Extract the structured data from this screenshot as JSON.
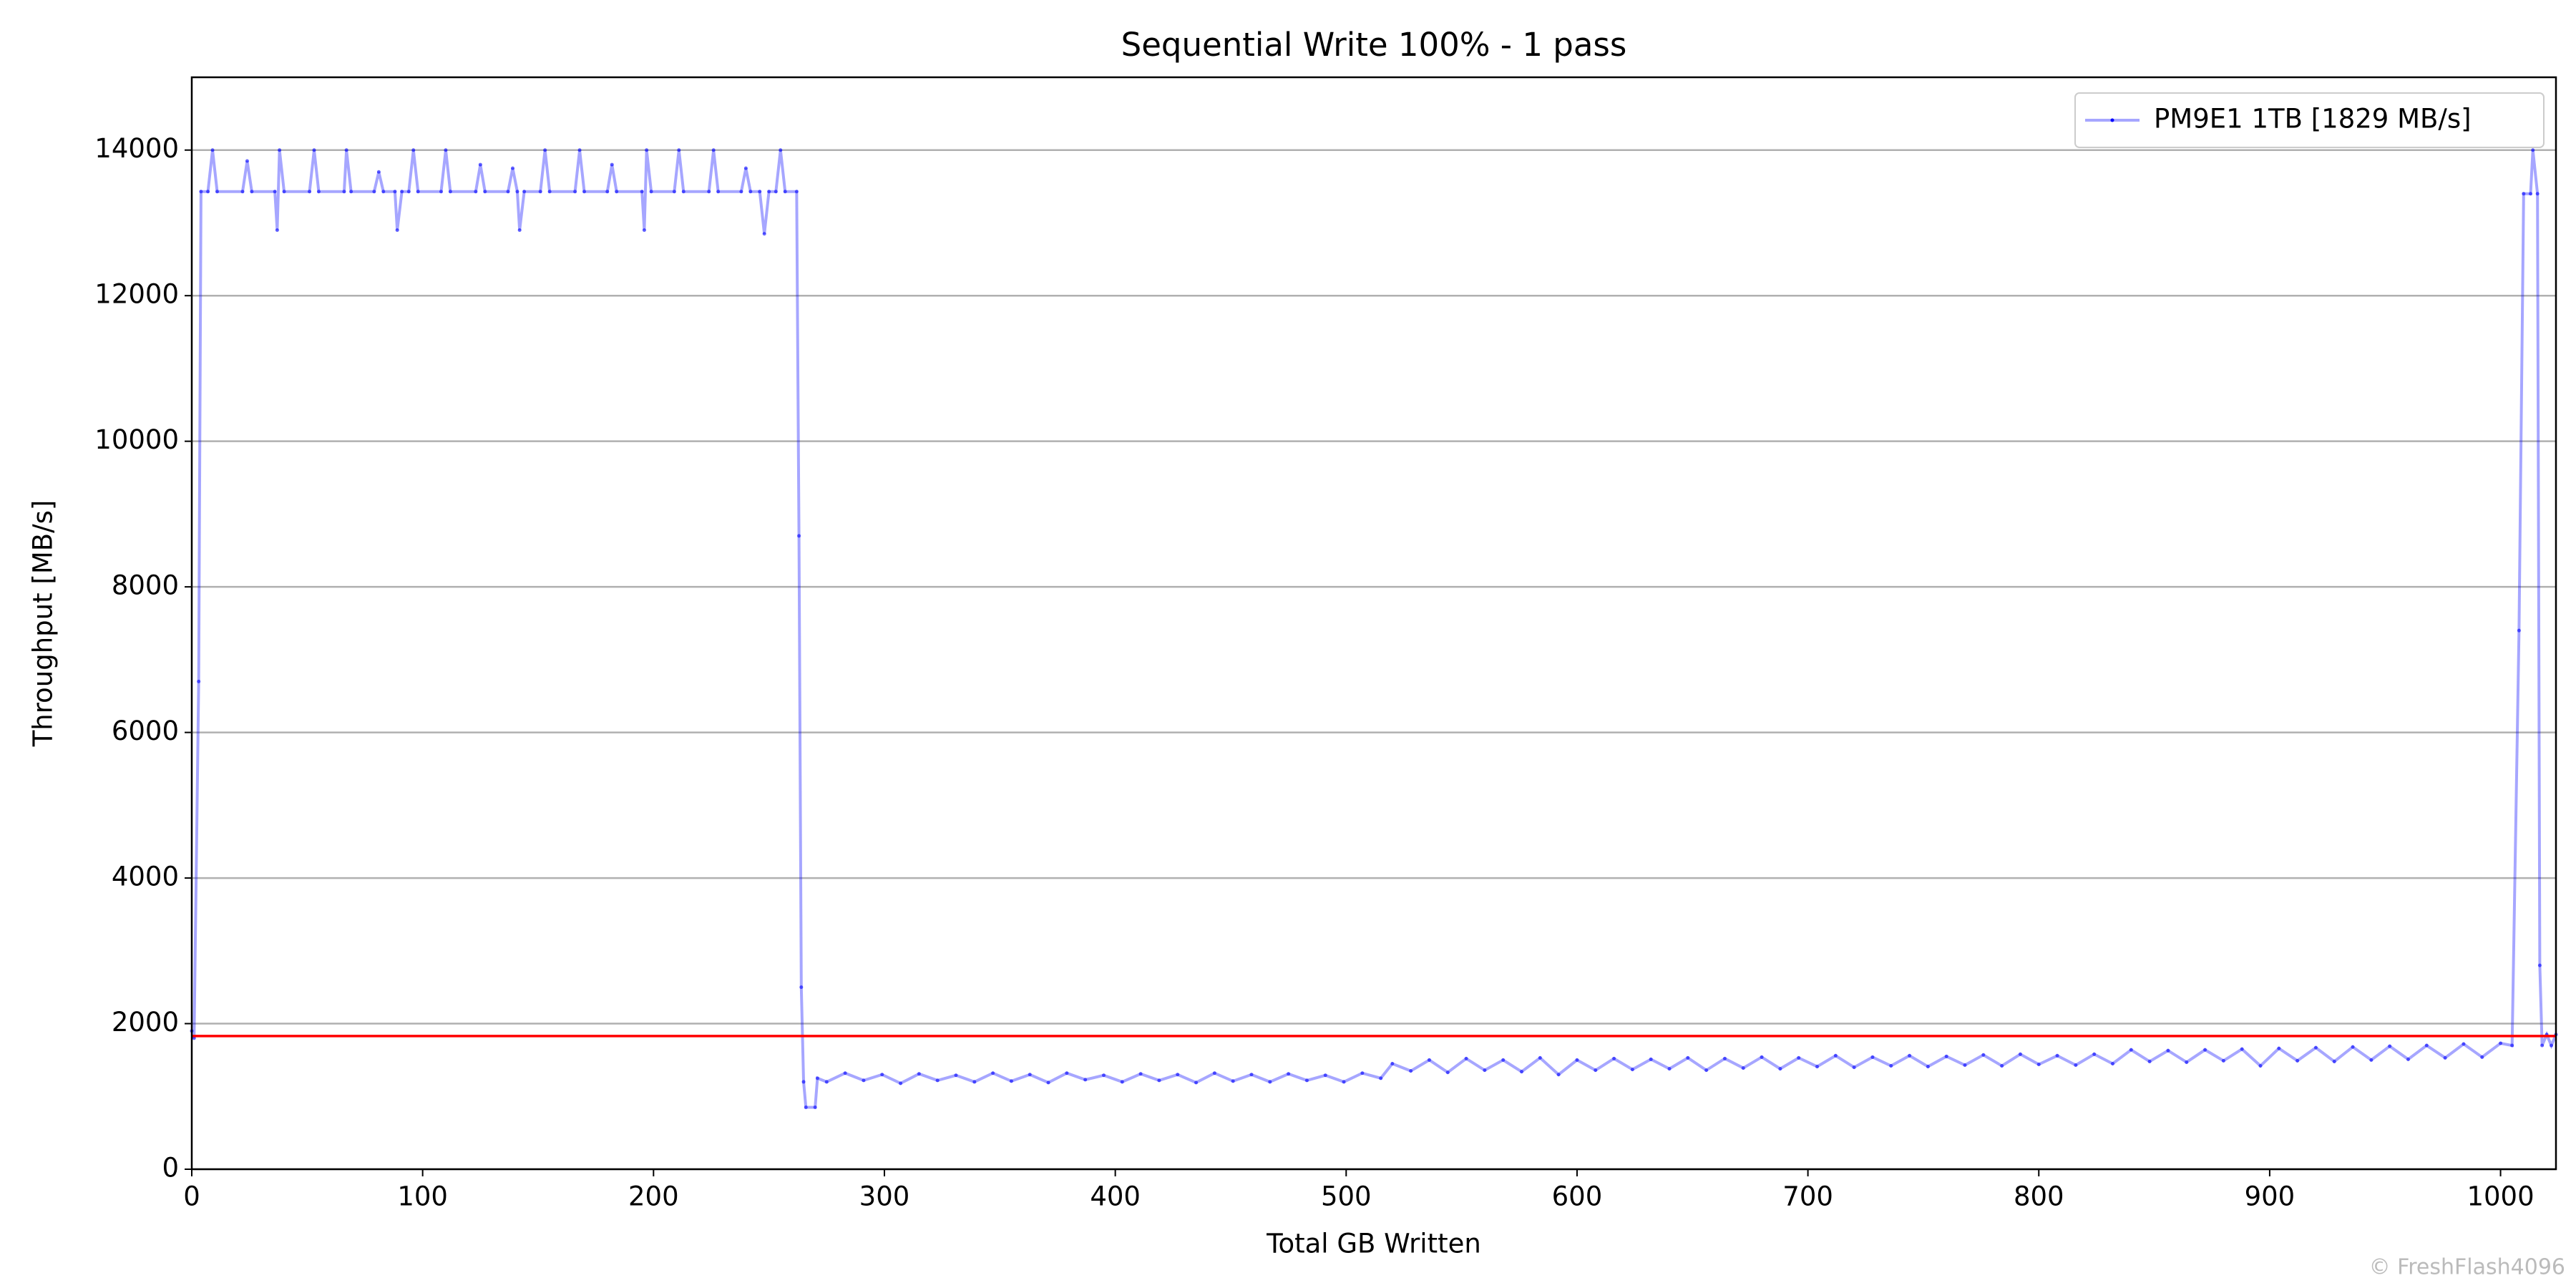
{
  "chart_data": {
    "type": "line",
    "title": "Sequential Write 100% - 1 pass",
    "xlabel": "Total GB Written",
    "ylabel": "Throughput [MB/s]",
    "watermark": "© FreshFlash4096",
    "xlim": [
      0,
      1024
    ],
    "ylim": [
      0,
      15000
    ],
    "xticks": [
      0,
      100,
      200,
      300,
      400,
      500,
      600,
      700,
      800,
      900,
      1000
    ],
    "yticks": [
      0,
      2000,
      4000,
      6000,
      8000,
      10000,
      12000,
      14000
    ],
    "grid": true,
    "legend": "upper right",
    "hline": {
      "value": 1829,
      "color": "#ff0000"
    },
    "x": [
      0,
      1,
      3,
      4,
      7,
      9,
      11,
      22,
      24,
      26,
      36,
      37,
      38,
      40,
      51,
      53,
      55,
      66,
      67,
      69,
      79,
      81,
      83,
      88,
      89,
      91,
      94,
      96,
      98,
      108,
      110,
      112,
      123,
      125,
      127,
      137,
      139,
      141,
      142,
      144,
      151,
      153,
      155,
      166,
      168,
      170,
      180,
      182,
      184,
      195,
      196,
      197,
      199,
      209,
      211,
      213,
      224,
      226,
      228,
      238,
      240,
      242,
      246,
      248,
      250,
      253,
      255,
      257,
      262,
      263,
      264,
      265,
      266,
      270,
      271,
      275,
      283,
      291,
      299,
      307,
      315,
      323,
      331,
      339,
      347,
      355,
      363,
      371,
      379,
      387,
      395,
      403,
      411,
      419,
      427,
      435,
      443,
      451,
      459,
      467,
      475,
      483,
      491,
      499,
      507,
      515,
      520,
      528,
      536,
      544,
      552,
      560,
      568,
      576,
      584,
      592,
      600,
      608,
      616,
      624,
      632,
      640,
      648,
      656,
      664,
      672,
      680,
      688,
      696,
      704,
      712,
      720,
      728,
      736,
      744,
      752,
      760,
      768,
      776,
      784,
      792,
      800,
      808,
      816,
      824,
      832,
      840,
      848,
      856,
      864,
      872,
      880,
      888,
      896,
      904,
      912,
      920,
      928,
      936,
      944,
      952,
      960,
      968,
      976,
      984,
      992,
      1000,
      1005,
      1008,
      1010,
      1013,
      1014,
      1016,
      1017,
      1018,
      1020,
      1022,
      1024
    ],
    "series": [
      {
        "name": "PM9E1 1TB [1829 MB/s]",
        "color": "#0000ff",
        "values": [
          1900,
          1800,
          6700,
          13430,
          13430,
          14000,
          13430,
          13430,
          13850,
          13430,
          13430,
          12900,
          14000,
          13430,
          13430,
          14000,
          13430,
          13430,
          14000,
          13430,
          13430,
          13700,
          13430,
          13430,
          12900,
          13430,
          13430,
          14000,
          13430,
          13430,
          14000,
          13430,
          13430,
          13800,
          13430,
          13430,
          13750,
          13430,
          12900,
          13430,
          13430,
          14000,
          13430,
          13430,
          14000,
          13430,
          13430,
          13800,
          13430,
          13430,
          12900,
          14000,
          13430,
          13430,
          14000,
          13430,
          13430,
          14000,
          13430,
          13430,
          13750,
          13430,
          13430,
          12850,
          13430,
          13430,
          14000,
          13430,
          13430,
          8700,
          2500,
          1200,
          850,
          850,
          1250,
          1200,
          1320,
          1220,
          1300,
          1180,
          1310,
          1220,
          1290,
          1200,
          1320,
          1210,
          1300,
          1190,
          1320,
          1230,
          1290,
          1200,
          1310,
          1220,
          1300,
          1190,
          1320,
          1210,
          1300,
          1200,
          1310,
          1220,
          1290,
          1200,
          1320,
          1250,
          1450,
          1350,
          1500,
          1330,
          1520,
          1360,
          1500,
          1340,
          1530,
          1300,
          1500,
          1360,
          1520,
          1370,
          1510,
          1380,
          1530,
          1360,
          1520,
          1390,
          1540,
          1380,
          1530,
          1410,
          1560,
          1400,
          1540,
          1420,
          1560,
          1410,
          1550,
          1430,
          1570,
          1420,
          1580,
          1440,
          1560,
          1430,
          1580,
          1450,
          1640,
          1480,
          1630,
          1470,
          1640,
          1490,
          1650,
          1420,
          1660,
          1490,
          1670,
          1480,
          1680,
          1500,
          1690,
          1510,
          1700,
          1530,
          1720,
          1540,
          1730,
          1700,
          7400,
          13400,
          13400,
          14000,
          13400,
          2800,
          1700,
          1850,
          1700,
          1850
        ]
      }
    ]
  }
}
